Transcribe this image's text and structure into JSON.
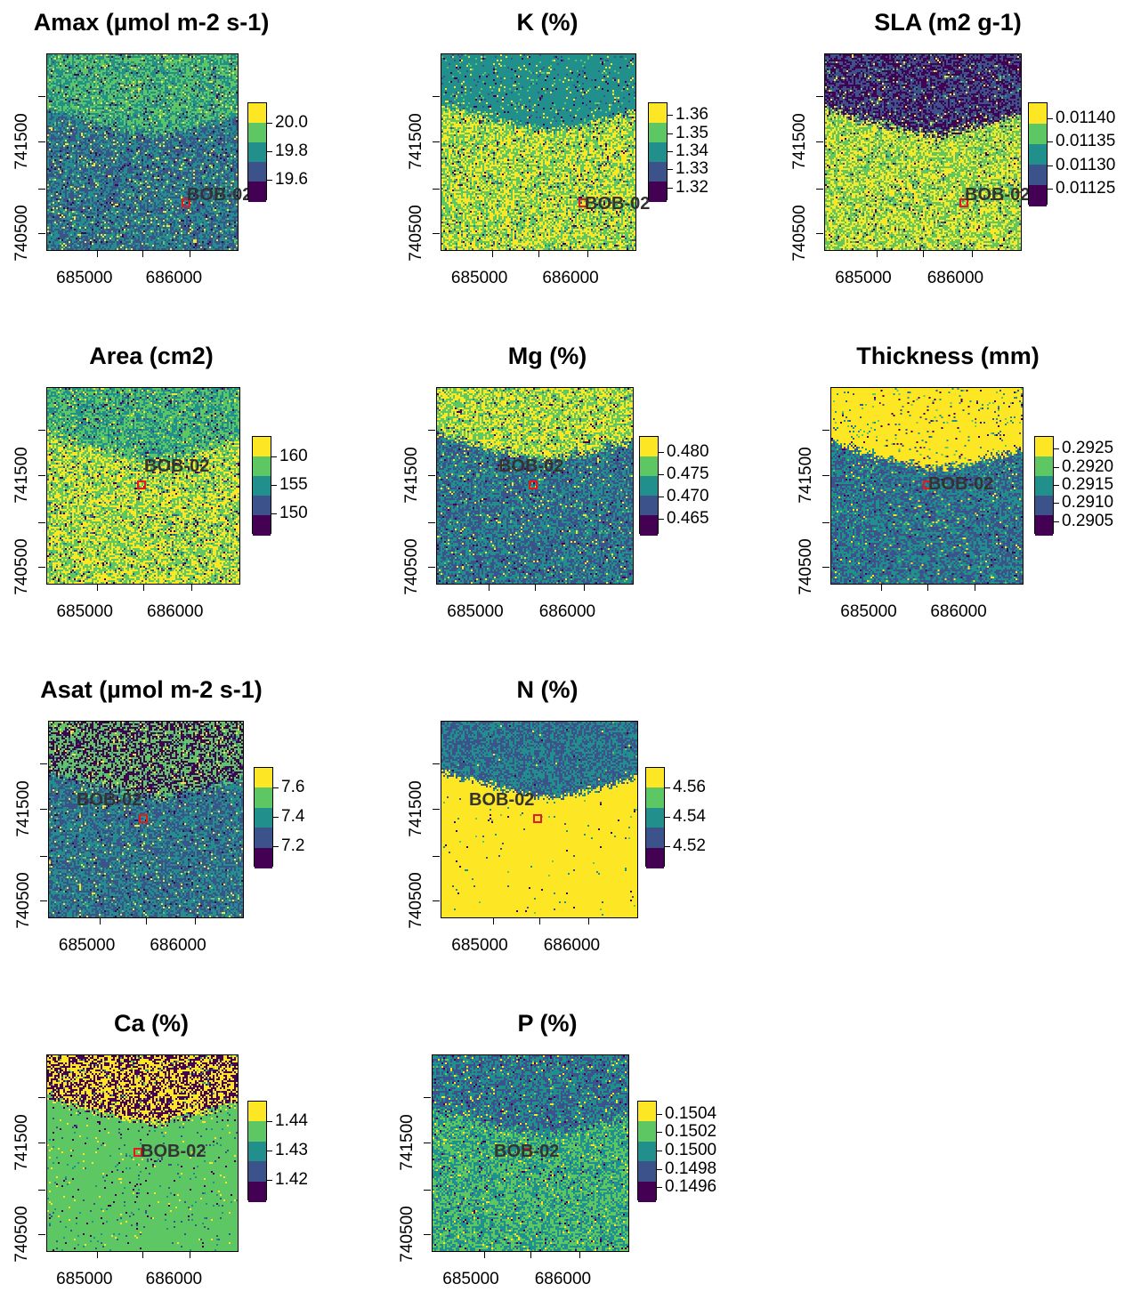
{
  "site_label": "BOB-02",
  "x_ticks": [
    "685000",
    "686000"
  ],
  "y_ticks": [
    "741500",
    "740500"
  ],
  "colors": {
    "palette": [
      "#440154",
      "#3b528b",
      "#21908c",
      "#5dc863",
      "#fde725"
    ],
    "site_marker": "#e41a1c"
  },
  "panels": [
    {
      "id": "amax",
      "title": "Amax (µmol m-2 s-1)",
      "legend_labels": [
        "20.0",
        "19.8",
        "19.6"
      ]
    },
    {
      "id": "k",
      "title": "K (%)",
      "legend_labels": [
        "1.36",
        "1.35",
        "1.34",
        "1.33",
        "1.32"
      ]
    },
    {
      "id": "sla",
      "title": "SLA (m2 g-1)",
      "legend_labels": [
        "0.01140",
        "0.01135",
        "0.01130",
        "0.01125"
      ]
    },
    {
      "id": "area",
      "title": "Area (cm2)",
      "legend_labels": [
        "160",
        "155",
        "150"
      ]
    },
    {
      "id": "mg",
      "title": "Mg (%)",
      "legend_labels": [
        "0.480",
        "0.475",
        "0.470",
        "0.465"
      ]
    },
    {
      "id": "thickness",
      "title": "Thickness (mm)",
      "legend_labels": [
        "0.2925",
        "0.2920",
        "0.2915",
        "0.2910",
        "0.2905"
      ]
    },
    {
      "id": "asat",
      "title": "Asat (µmol m-2 s-1)",
      "legend_labels": [
        "7.6",
        "7.4",
        "7.2"
      ]
    },
    {
      "id": "n",
      "title": "N (%)",
      "legend_labels": [
        "4.56",
        "4.54",
        "4.52"
      ]
    },
    {
      "id": "ca",
      "title": "Ca (%)",
      "legend_labels": [
        "1.44",
        "1.43",
        "1.42"
      ]
    },
    {
      "id": "p",
      "title": "P (%)",
      "legend_labels": [
        "0.1504",
        "0.1502",
        "0.1500",
        "0.1498",
        "0.1496"
      ]
    }
  ]
}
